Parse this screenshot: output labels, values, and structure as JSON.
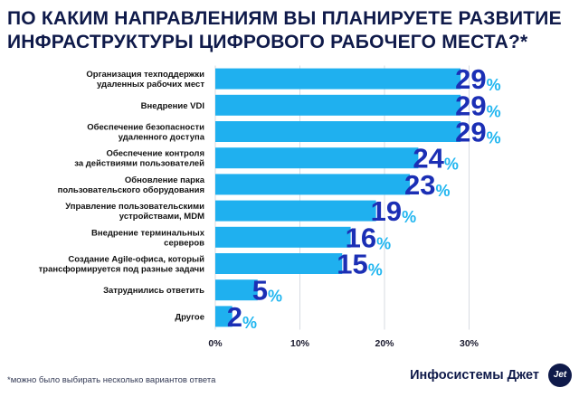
{
  "title": "ПО КАКИМ НАПРАВЛЕНИЯМ ВЫ ПЛАНИРУЕТЕ РАЗВИТИЕ\nИНФРАСТРУКТУРЫ ЦИФРОВОГО РАБОЧЕГО МЕСТА?*",
  "footnote": "*можно было выбирать несколько вариантов ответа",
  "brand": "Инфосистемы Джет",
  "brand_logo": "Jet",
  "colors": {
    "bar": "#1fb0ef",
    "value": "#1b2fb5",
    "percent": "#21b6f0",
    "label": "#111111",
    "grid": "#d7dbe2",
    "title": "#0f1a4a"
  },
  "chart_data": {
    "type": "bar",
    "orientation": "horizontal",
    "categories": [
      "Организация техподдержки\nудаленных рабочих мест",
      "Внедрение VDI",
      "Обеспечение безопасности\nудаленного доступа",
      "Обеспечение контроля\nза действиями пользователей",
      "Обновление парка\nпользовательского оборудования",
      "Управление пользовательскими\nустройствами, MDM",
      "Внедрение терминальных\nсерверов",
      "Создание Agile-офиса, который\nтрансформируется под разные задачи",
      "Затруднились ответить",
      "Другое"
    ],
    "values": [
      29,
      29,
      29,
      24,
      23,
      19,
      16,
      15,
      5,
      2
    ],
    "value_suffix": "%",
    "xlim": [
      0,
      30
    ],
    "xticks": [
      "0%",
      "10%",
      "20%",
      "30%"
    ],
    "xtick_values": [
      0,
      10,
      20,
      30
    ],
    "grid": true
  }
}
